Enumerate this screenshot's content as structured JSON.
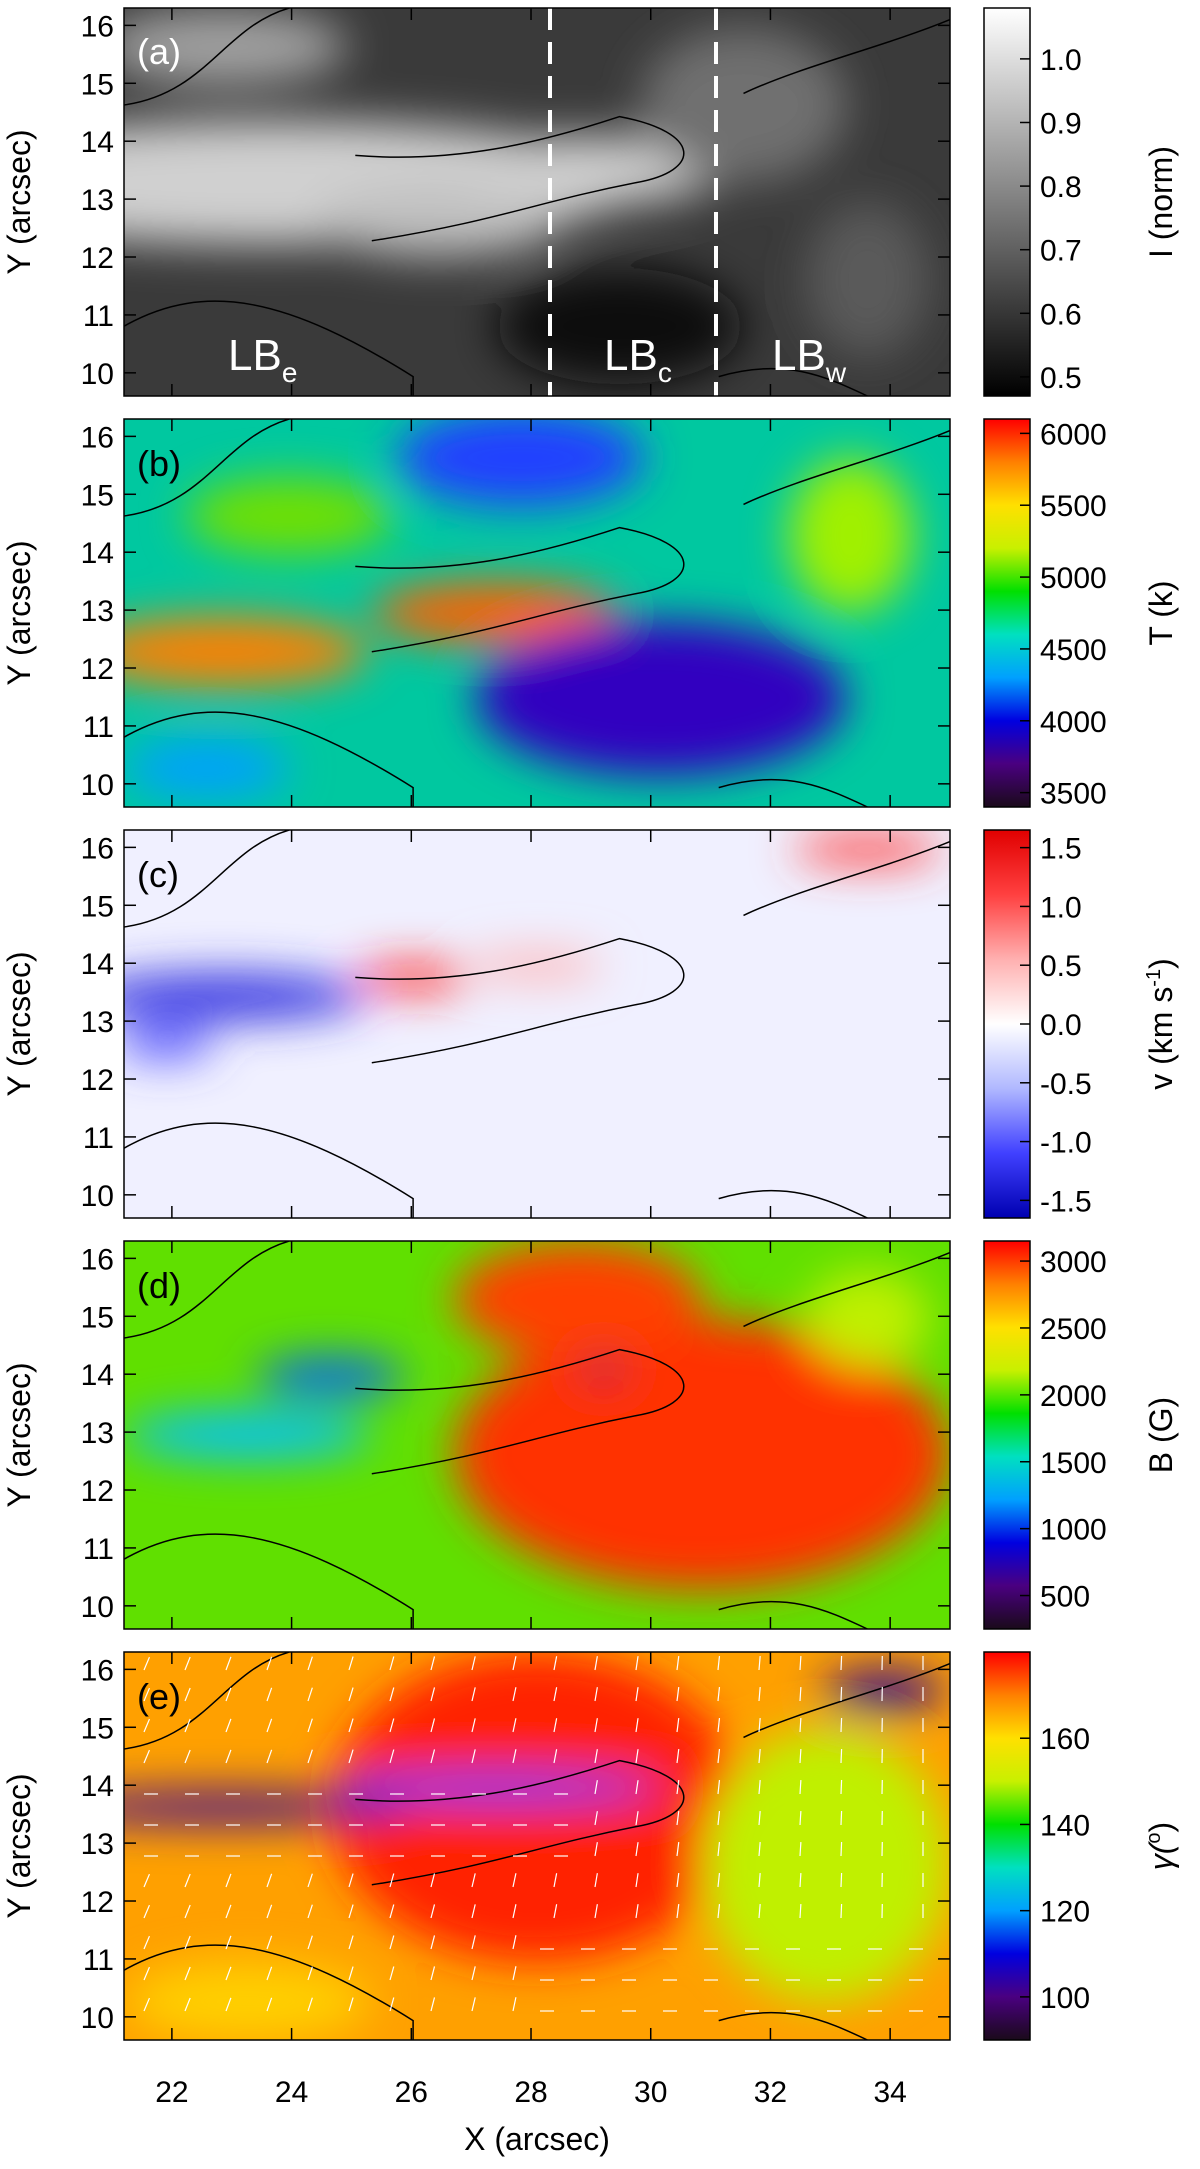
{
  "figure": {
    "xlabel": "X (arcsec)",
    "x_ticks": [
      "22",
      "24",
      "26",
      "28",
      "30",
      "32",
      "34"
    ],
    "xlim": [
      21.2,
      35.0
    ]
  },
  "chart_data": [
    {
      "type": "heatmap",
      "panel": "(a)",
      "ylabel": "Y (arcsec)",
      "xlim": [
        21.2,
        35.0
      ],
      "ylim": [
        9.6,
        16.3
      ],
      "y_ticks": [
        "10",
        "11",
        "12",
        "13",
        "14",
        "15",
        "16"
      ],
      "colorbar_label": "I (norm)",
      "colorbar_ticks": [
        "0.5",
        "0.6",
        "0.7",
        "0.8",
        "0.9",
        "1.0"
      ],
      "colorbar_range": [
        0.47,
        1.08
      ],
      "colormap": [
        "#000000",
        "#ffffff"
      ],
      "annotations": [
        {
          "base": "LB",
          "sub": "e",
          "x": 23.7,
          "y": 10.1
        },
        {
          "base": "LB",
          "sub": "c",
          "x": 29.7,
          "y": 10.1
        },
        {
          "base": "LB",
          "sub": "w",
          "x": 32.6,
          "y": 10.1
        }
      ],
      "dashed_lines_x": [
        28.35,
        31.15
      ]
    },
    {
      "type": "heatmap",
      "panel": "(b)",
      "ylabel": "Y (arcsec)",
      "xlim": [
        21.2,
        35.0
      ],
      "ylim": [
        9.6,
        16.3
      ],
      "y_ticks": [
        "10",
        "11",
        "12",
        "13",
        "14",
        "15",
        "16"
      ],
      "colorbar_label": "T (k)",
      "colorbar_ticks": [
        "3500",
        "4000",
        "4500",
        "5000",
        "5500",
        "6000"
      ],
      "colorbar_range": [
        3400,
        6100
      ],
      "colormap": [
        "#1a0a1a",
        "#4a0080",
        "#0000e0",
        "#00a0ff",
        "#00e0c0",
        "#00e000",
        "#c8f000",
        "#ffe000",
        "#ff8000",
        "#ff0000"
      ]
    },
    {
      "type": "heatmap",
      "panel": "(c)",
      "ylabel_main": "v (km s",
      "ylabel_sup": "-1",
      "ylabel_end": ")",
      "ylabel": "Y (arcsec)",
      "xlim": [
        21.2,
        35.0
      ],
      "ylim": [
        9.6,
        16.3
      ],
      "y_ticks": [
        "10",
        "11",
        "12",
        "13",
        "14",
        "15",
        "16"
      ],
      "colorbar_ticks": [
        "-1.5",
        "-1.0",
        "-0.5",
        "0.0",
        "0.5",
        "1.0",
        "1.5"
      ],
      "colorbar_range": [
        -1.65,
        1.65
      ],
      "colormap": [
        "#0000b0",
        "#4040ff",
        "#b0b8ff",
        "#ffffff",
        "#ffb0b0",
        "#ff4040",
        "#e00000"
      ]
    },
    {
      "type": "heatmap",
      "panel": "(d)",
      "ylabel": "Y (arcsec)",
      "xlim": [
        21.2,
        35.0
      ],
      "ylim": [
        9.6,
        16.3
      ],
      "y_ticks": [
        "10",
        "11",
        "12",
        "13",
        "14",
        "15",
        "16"
      ],
      "colorbar_label": "B (G)",
      "colorbar_ticks": [
        "500",
        "1000",
        "1500",
        "2000",
        "2500",
        "3000"
      ],
      "colorbar_range": [
        250,
        3150
      ],
      "colormap": [
        "#1a0a1a",
        "#4a0080",
        "#0000e0",
        "#00a0ff",
        "#00e0c0",
        "#00e000",
        "#c8f000",
        "#ffe000",
        "#ff8000",
        "#ff0000"
      ]
    },
    {
      "type": "heatmap",
      "panel": "(e)",
      "ylabel": "Y (arcsec)",
      "xlim": [
        21.2,
        35.0
      ],
      "ylim": [
        9.6,
        16.3
      ],
      "y_ticks": [
        "10",
        "11",
        "12",
        "13",
        "14",
        "15",
        "16"
      ],
      "colorbar_label": "γ(°)",
      "colorbar_label_main": "γ(",
      "colorbar_label_sup": "o",
      "colorbar_label_end": ")",
      "colorbar_ticks": [
        "100",
        "120",
        "140",
        "160"
      ],
      "colorbar_range": [
        90,
        180
      ],
      "colormap": [
        "#1a0a1a",
        "#4a0080",
        "#0000e0",
        "#00a0ff",
        "#00e0c0",
        "#00e000",
        "#c8f000",
        "#ffe000",
        "#ff8000",
        "#ff0000"
      ],
      "arrows": "white vectors"
    }
  ],
  "colors": {
    "frame": "#000000",
    "contour": "#000000",
    "dashed": "#ffffff",
    "arrow": "#ffffff"
  }
}
